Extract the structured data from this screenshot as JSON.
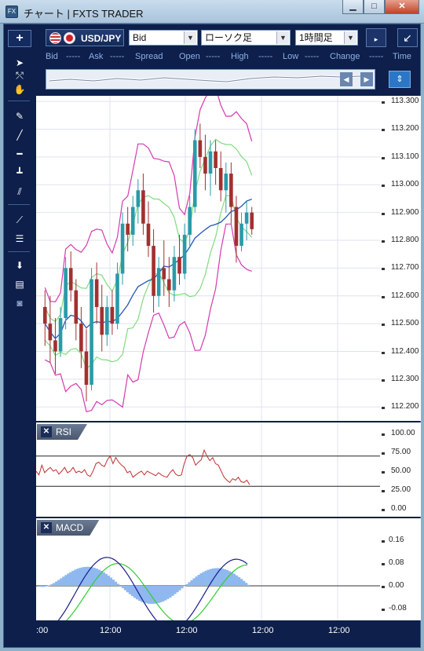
{
  "window": {
    "icon": "FX",
    "title": "チャート | FXTS TRADER",
    "minimize": "▁",
    "maximize": "□",
    "close": "✕"
  },
  "toolbar": {
    "add": "+",
    "pair": "USD/JPY",
    "price_type": "Bid",
    "chart_style": "ローソク足",
    "timeframe": "1時間足",
    "expand_icon": "↙"
  },
  "info_bar": {
    "bid_label": "Bid",
    "bid_value": "-----",
    "ask_label": "Ask",
    "ask_value": "-----",
    "spread_label": "Spread",
    "open_label": "Open",
    "open_value": "-----",
    "high_label": "High",
    "high_value": "-----",
    "low_label": "Low",
    "low_value": "-----",
    "change_label": "Change",
    "change_value": "-----",
    "time_label": "Time"
  },
  "price_axis": [
    "113.300",
    "113.200",
    "113.100",
    "113.000",
    "112.900",
    "112.800",
    "112.700",
    "112.600",
    "112.500",
    "112.400",
    "112.300",
    "112.200"
  ],
  "rsi": {
    "label": "RSI",
    "axis": [
      "100.00",
      "75.00",
      "50.00",
      "25.00",
      "0.00"
    ],
    "values": [
      50,
      45,
      58,
      48,
      52,
      55,
      50,
      52,
      46,
      50,
      55,
      48,
      50,
      55,
      48,
      50,
      48,
      52,
      45,
      43,
      50,
      60,
      62,
      58,
      56,
      65,
      70,
      60,
      68,
      62,
      58,
      55,
      48,
      50,
      42,
      45,
      48,
      50,
      45,
      50,
      48,
      46,
      44,
      48,
      45,
      43,
      42,
      48,
      52,
      46,
      44,
      45,
      60,
      70,
      72,
      68,
      58,
      62,
      65,
      78,
      70,
      64,
      68,
      60,
      58,
      50,
      42,
      38,
      35,
      40,
      38,
      42,
      36,
      35,
      38,
      32
    ]
  },
  "macd": {
    "label": "MACD",
    "axis": [
      "0.16",
      "0.08",
      "0.00",
      "-0.08"
    ]
  },
  "time_axis": [
    ":00",
    "12:00",
    "12:00",
    "12:00",
    "12:00"
  ],
  "chart_data": {
    "type": "candlestick",
    "series_label": "USD/JPY",
    "ylim": [
      112.15,
      113.32
    ],
    "candles": [
      [
        112.56,
        112.62,
        112.42,
        112.5
      ],
      [
        112.5,
        112.6,
        112.36,
        112.44
      ],
      [
        112.44,
        112.52,
        112.32,
        112.4
      ],
      [
        112.4,
        112.56,
        112.38,
        112.52
      ],
      [
        112.52,
        112.74,
        112.48,
        112.7
      ],
      [
        112.7,
        112.76,
        112.58,
        112.62
      ],
      [
        112.62,
        112.66,
        112.44,
        112.5
      ],
      [
        112.5,
        112.56,
        112.34,
        112.4
      ],
      [
        112.4,
        112.48,
        112.22,
        112.28
      ],
      [
        112.28,
        112.7,
        112.26,
        112.66
      ],
      [
        112.66,
        112.72,
        112.5,
        112.56
      ],
      [
        112.56,
        112.64,
        112.4,
        112.46
      ],
      [
        112.46,
        112.6,
        112.42,
        112.56
      ],
      [
        112.56,
        112.62,
        112.46,
        112.5
      ],
      [
        112.5,
        112.72,
        112.48,
        112.68
      ],
      [
        112.68,
        112.9,
        112.64,
        112.86
      ],
      [
        112.86,
        112.92,
        112.76,
        112.82
      ],
      [
        112.82,
        112.96,
        112.78,
        112.92
      ],
      [
        112.92,
        113.02,
        112.86,
        112.98
      ],
      [
        112.98,
        113.04,
        112.82,
        112.86
      ],
      [
        112.86,
        112.94,
        112.74,
        112.78
      ],
      [
        112.78,
        112.84,
        112.54,
        112.6
      ],
      [
        112.6,
        112.74,
        112.56,
        112.7
      ],
      [
        112.7,
        112.8,
        112.6,
        112.66
      ],
      [
        112.66,
        112.74,
        112.56,
        112.62
      ],
      [
        112.62,
        112.78,
        112.58,
        112.74
      ],
      [
        112.74,
        112.82,
        112.64,
        112.68
      ],
      [
        112.68,
        112.86,
        112.66,
        112.82
      ],
      [
        112.82,
        112.96,
        112.78,
        112.92
      ],
      [
        112.92,
        113.2,
        112.9,
        113.16
      ],
      [
        113.16,
        113.22,
        113.06,
        113.1
      ],
      [
        113.1,
        113.18,
        112.98,
        113.04
      ],
      [
        113.04,
        113.16,
        112.96,
        113.12
      ],
      [
        113.12,
        113.16,
        113.0,
        113.06
      ],
      [
        113.06,
        113.12,
        112.94,
        112.98
      ],
      [
        112.98,
        113.08,
        112.9,
        113.04
      ],
      [
        113.04,
        113.08,
        112.86,
        112.92
      ],
      [
        112.92,
        112.96,
        112.72,
        112.78
      ],
      [
        112.78,
        112.9,
        112.76,
        112.86
      ],
      [
        112.86,
        112.94,
        112.8,
        112.9
      ],
      [
        112.9,
        112.92,
        112.82,
        112.84
      ]
    ]
  },
  "colors": {
    "bull": "#2a9aa9",
    "bear": "#a23030",
    "bollinger_outer": "#d43ab0",
    "bollinger_mid": "#7fdc7f",
    "moving_avg": "#2456b8",
    "rsi_line": "#c03030",
    "macd_line": "#1a1a8c",
    "signal_line": "#33cc33",
    "histogram": "#8fb8ef"
  }
}
